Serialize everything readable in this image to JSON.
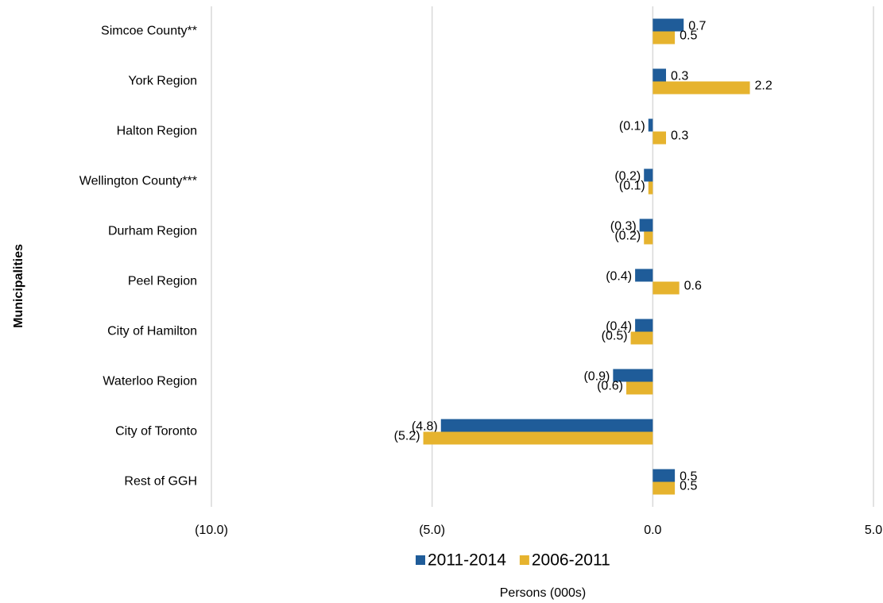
{
  "chart_data": {
    "type": "hbar",
    "categories": [
      "Simcoe County**",
      "York Region",
      "Halton Region",
      "Wellington County***",
      "Durham Region",
      "Peel Region",
      "City of Hamilton",
      "Waterloo Region",
      "City of Toronto",
      "Rest of GGH"
    ],
    "series": [
      {
        "name": "2011-2014",
        "color": "#1f5c99",
        "values": [
          0.7,
          0.3,
          -0.1,
          -0.2,
          -0.3,
          -0.4,
          -0.4,
          -0.9,
          -4.8,
          0.5
        ],
        "value_labels": [
          "0.7",
          "0.3",
          "(0.1)",
          "(0.2)",
          "(0.3)",
          "(0.4)",
          "(0.4)",
          "(0.9)",
          "(4.8)",
          "0.5"
        ]
      },
      {
        "name": "2006-2011",
        "color": "#e6b32e",
        "values": [
          0.5,
          2.2,
          0.3,
          -0.1,
          -0.2,
          0.6,
          -0.5,
          -0.6,
          -5.2,
          0.5
        ],
        "value_labels": [
          "0.5",
          "2.2",
          "0.3",
          "(0.1)",
          "(0.2)",
          "0.6",
          "(0.5)",
          "(0.6)",
          "(5.2)",
          "0.5"
        ]
      }
    ],
    "xlabel": "Persons (000s)",
    "ylabel": "Municipalities",
    "xlim": [
      -10,
      5
    ],
    "xticks": [
      {
        "value": -10,
        "label": "(10.0)"
      },
      {
        "value": -5,
        "label": "(5.0)"
      },
      {
        "value": 0,
        "label": "0.0"
      },
      {
        "value": 5,
        "label": "5.0"
      }
    ],
    "grid": true,
    "legend": "bottom"
  }
}
